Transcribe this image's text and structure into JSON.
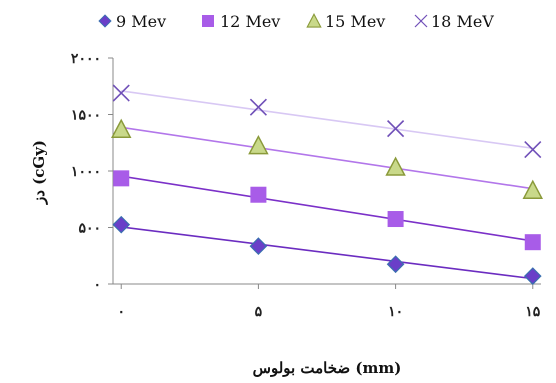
{
  "chart_data": {
    "type": "scatter",
    "title": "",
    "xlabel": "ضخامت بولوس (mm)",
    "ylabel": "دز (cGy)",
    "x": [
      0,
      5,
      10,
      15
    ],
    "x_tick_labels": [
      "۰",
      "۵",
      "۱۰",
      "۱۵"
    ],
    "xlim": [
      0,
      15
    ],
    "ylim": [
      0,
      2000
    ],
    "y_ticks": [
      0,
      500,
      1000,
      1500,
      2000
    ],
    "y_tick_labels": [
      "۰",
      "۵۰۰",
      "۱۰۰۰",
      "۱۵۰۰",
      "۲۰۰۰"
    ],
    "grid": false,
    "legend_position": "top",
    "trendlines": true,
    "series": [
      {
        "name": "9 Mev",
        "marker": "diamond",
        "color": "#6a3fc8",
        "trend_color": "#6b2cc0",
        "values": [
          525,
          335,
          175,
          70
        ]
      },
      {
        "name": "12 Mev",
        "marker": "square",
        "color": "#a85ce8",
        "trend_color": "#7b30c8",
        "values": [
          935,
          790,
          575,
          370
        ]
      },
      {
        "name": "15 Mev",
        "marker": "triangle",
        "color": "#c9d98a",
        "trend_color": "#b276ea",
        "values": [
          1370,
          1225,
          1035,
          830
        ]
      },
      {
        "name": "18 MeV",
        "marker": "x",
        "color": "#7050b8",
        "trend_color": "#d8c8f4",
        "values": [
          1690,
          1565,
          1375,
          1190
        ]
      }
    ]
  }
}
